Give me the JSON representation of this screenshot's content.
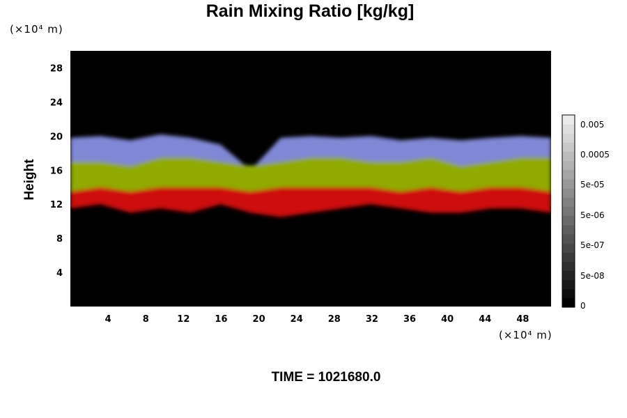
{
  "title": "Rain Mixing Ratio [kg/kg]",
  "y_unit": "(×10⁴ m)",
  "x_unit": "(×10⁴ m)",
  "ylabel": "Height",
  "time_label": "TIME = 1021680.0",
  "colors": {
    "background": "#000000",
    "upper_layer": "#8a94e6",
    "middle_layer": "#9cb800",
    "lower_layer": "#e01010"
  },
  "chart_data": {
    "type": "heatmap",
    "title": "Rain Mixing Ratio [kg/kg]",
    "xlabel": "",
    "ylabel": "Height",
    "x_unit": "(×10⁴ m)",
    "y_unit": "(×10⁴ m)",
    "xlim": [
      0,
      51
    ],
    "ylim": [
      0,
      30
    ],
    "x_ticks": [
      4,
      8,
      12,
      16,
      20,
      24,
      28,
      32,
      36,
      40,
      44,
      48
    ],
    "y_ticks": [
      4,
      8,
      12,
      16,
      20,
      24,
      28
    ],
    "colorbar": {
      "labels": [
        "0.005",
        "0.0005",
        "5e-05",
        "5e-06",
        "5e-07",
        "5e-08",
        "0"
      ],
      "levels": 21
    },
    "layers": [
      {
        "color": "upper_layer",
        "bottom": [
          17,
          17,
          16.5,
          17.5,
          17.5,
          17,
          16.5,
          17,
          17.5,
          17.5,
          17,
          17,
          17.5,
          16.5,
          17,
          17.5,
          17.5
        ],
        "top": [
          19.8,
          20,
          19.5,
          20.2,
          19.8,
          19,
          16,
          19.8,
          20,
          19.8,
          20,
          19.5,
          19.8,
          19.5,
          19.8,
          20,
          19.8
        ]
      },
      {
        "color": "middle_layer",
        "bottom": [
          13.5,
          14,
          13.5,
          14,
          14,
          14,
          13.5,
          14,
          14,
          14,
          14,
          13.5,
          14,
          13.5,
          14,
          14,
          13.5
        ],
        "top": [
          17,
          17,
          16.5,
          17.5,
          17.5,
          17,
          16.5,
          17,
          17.5,
          17.5,
          17,
          17,
          17.5,
          16.5,
          17,
          17.5,
          17.5
        ]
      },
      {
        "color": "lower_layer",
        "bottom": [
          11.5,
          12,
          11,
          11.5,
          11,
          12,
          11,
          10.5,
          11,
          11.5,
          12,
          11.5,
          11,
          11,
          11.5,
          11.5,
          11
        ],
        "top": [
          13.5,
          14,
          13.5,
          14,
          14,
          14,
          13.5,
          14,
          14,
          14,
          14,
          13.5,
          14,
          13.5,
          14,
          14,
          13.5
        ]
      }
    ]
  }
}
